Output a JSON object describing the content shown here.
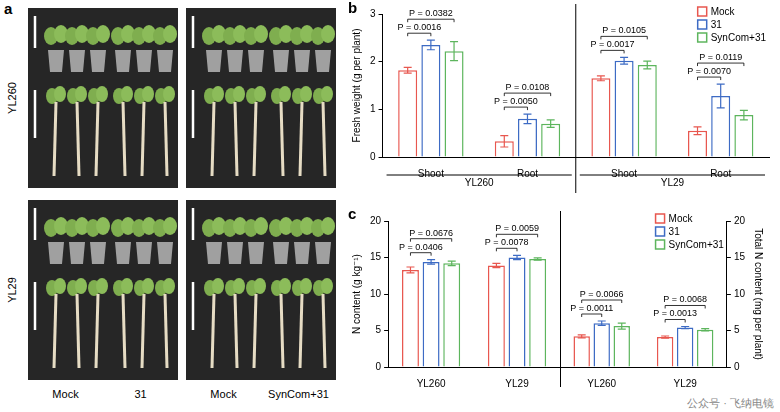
{
  "figure": {
    "panel_a": {
      "label": "a",
      "rows": [
        "YL260",
        "YL29"
      ],
      "columns": [
        [
          "Mock",
          "31"
        ],
        [
          "Mock",
          "SynCom+31"
        ]
      ]
    },
    "watermark": "公众号 · 飞纳电镜"
  },
  "chart_data": [
    {
      "panel": "b",
      "type": "bar",
      "categories": [
        "Shoot",
        "Root",
        "Shoot",
        "Root"
      ],
      "groups": [
        "YL260",
        "YL29"
      ],
      "ylabel": "Fresh weight (g per plant)",
      "ylim": [
        0,
        3
      ],
      "yticks": [
        0,
        1,
        2,
        3
      ],
      "grid": false,
      "legend": "top right",
      "series": [
        {
          "name": "Mock",
          "color": "#e8574f",
          "values": [
            1.82,
            0.33,
            1.65,
            0.55
          ],
          "errors": [
            0.06,
            0.12,
            0.05,
            0.08
          ]
        },
        {
          "name": "31",
          "color": "#3d6bc4",
          "values": [
            2.35,
            0.8,
            2.02,
            1.28
          ],
          "errors": [
            0.1,
            0.1,
            0.07,
            0.25
          ]
        },
        {
          "name": "SynCom+31",
          "color": "#5db55d",
          "values": [
            2.22,
            0.7,
            1.93,
            0.88
          ],
          "errors": [
            0.2,
            0.08,
            0.08,
            0.1
          ]
        }
      ],
      "comparisons": [
        [
          {
            "pair": [
              "Mock",
              "31"
            ],
            "text": "P = 0.0016"
          },
          {
            "pair": [
              "Mock",
              "SynCom+31"
            ],
            "text": "P = 0.0382"
          }
        ],
        [
          {
            "pair": [
              "Mock",
              "31"
            ],
            "text": "P = 0.0050"
          },
          {
            "pair": [
              "Mock",
              "SynCom+31"
            ],
            "text": "P = 0.0108"
          }
        ],
        [
          {
            "pair": [
              "Mock",
              "31"
            ],
            "text": "P = 0.0017"
          },
          {
            "pair": [
              "Mock",
              "SynCom+31"
            ],
            "text": "P = 0.0105"
          }
        ],
        [
          {
            "pair": [
              "Mock",
              "31"
            ],
            "text": "P = 0.0070"
          },
          {
            "pair": [
              "Mock",
              "SynCom+31"
            ],
            "text": "P = 0.0119"
          }
        ]
      ]
    },
    {
      "panel": "c",
      "type": "bar",
      "categories": [
        "YL260",
        "YL29"
      ],
      "ylabel": "N content (g kg⁻¹)",
      "ylim": [
        0,
        20
      ],
      "yticks": [
        0,
        5,
        10,
        15,
        20
      ],
      "grid": false,
      "series": [
        {
          "name": "Mock",
          "color": "#e8574f",
          "values": [
            13.3,
            13.9
          ],
          "errors": [
            0.4,
            0.3
          ]
        },
        {
          "name": "31",
          "color": "#3d6bc4",
          "values": [
            14.4,
            15.0
          ],
          "errors": [
            0.3,
            0.3
          ]
        },
        {
          "name": "SynCom+31",
          "color": "#5db55d",
          "values": [
            14.2,
            14.8
          ],
          "errors": [
            0.3,
            0.15
          ]
        }
      ],
      "comparisons": [
        [
          {
            "pair": [
              "Mock",
              "31"
            ],
            "text": "P = 0.0406"
          },
          {
            "pair": [
              "Mock",
              "SynCom+31"
            ],
            "text": "P = 0.0676"
          }
        ],
        [
          {
            "pair": [
              "Mock",
              "31"
            ],
            "text": "P = 0.0078"
          },
          {
            "pair": [
              "Mock",
              "SynCom+31"
            ],
            "text": "P = 0.0059"
          }
        ]
      ]
    },
    {
      "type": "bar",
      "categories": [
        "YL260",
        "YL29"
      ],
      "y2label": "Total N content (mg per plant)",
      "y2lim": [
        0,
        20
      ],
      "y2ticks": [
        0,
        5,
        10,
        15,
        20
      ],
      "grid": false,
      "legend": "top right",
      "series": [
        {
          "name": "Mock",
          "axis": "y2",
          "color": "#e8574f",
          "values": [
            4.2,
            4.1
          ],
          "errors": [
            0.2,
            0.15
          ]
        },
        {
          "name": "31",
          "axis": "y2",
          "color": "#3d6bc4",
          "values": [
            6.0,
            5.4
          ],
          "errors": [
            0.3,
            0.15
          ]
        },
        {
          "name": "SynCom+31",
          "axis": "y2",
          "color": "#5db55d",
          "values": [
            5.6,
            5.1
          ],
          "errors": [
            0.4,
            0.15
          ]
        }
      ],
      "comparisons": [
        [
          {
            "pair": [
              "Mock",
              "31"
            ],
            "text": "P = 0.0011"
          },
          {
            "pair": [
              "Mock",
              "SynCom+31"
            ],
            "text": "P = 0.0066"
          }
        ],
        [
          {
            "pair": [
              "Mock",
              "31"
            ],
            "text": "P = 0.0013"
          },
          {
            "pair": [
              "Mock",
              "SynCom+31"
            ],
            "text": "P = 0.0068"
          }
        ]
      ]
    }
  ]
}
